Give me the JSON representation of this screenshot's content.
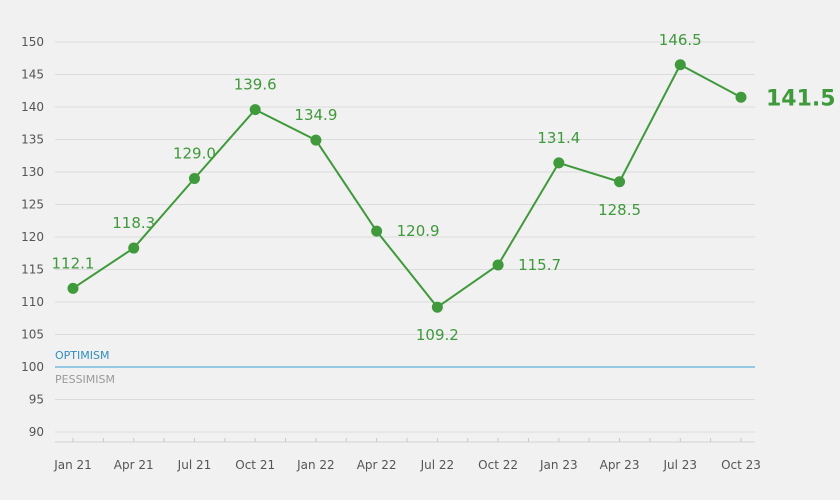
{
  "chart_data": {
    "type": "line",
    "title": "",
    "xlabel": "",
    "ylabel": "",
    "categories": [
      "Jan 21",
      "Apr 21",
      "Jul 21",
      "Oct 21",
      "Jan 22",
      "Apr 22",
      "Jul 22",
      "Oct 22",
      "Jan 23",
      "Apr 23",
      "Jul 23",
      "Oct 23"
    ],
    "values": [
      112.1,
      118.3,
      129.0,
      139.6,
      134.9,
      120.9,
      109.2,
      115.7,
      131.4,
      128.5,
      146.5,
      141.5
    ],
    "value_labels": [
      "112.1",
      "118.3",
      "129.0",
      "139.6",
      "134.9",
      "120.9",
      "109.2",
      "115.7",
      "131.4",
      "128.5",
      "146.5",
      "141.5"
    ],
    "ylim": [
      90,
      150
    ],
    "yticks": [
      90,
      95,
      100,
      105,
      110,
      115,
      120,
      125,
      130,
      135,
      140,
      145,
      150
    ],
    "grid": true,
    "line_color": "#3e9a3a",
    "reference_line": {
      "value": 100,
      "label_above": "OPTIMISM",
      "label_below": "PESSIMISM",
      "color": "#3a9fd1",
      "label_above_color": "#2f8fc6",
      "label_below_color": "#9a9a9a"
    }
  }
}
